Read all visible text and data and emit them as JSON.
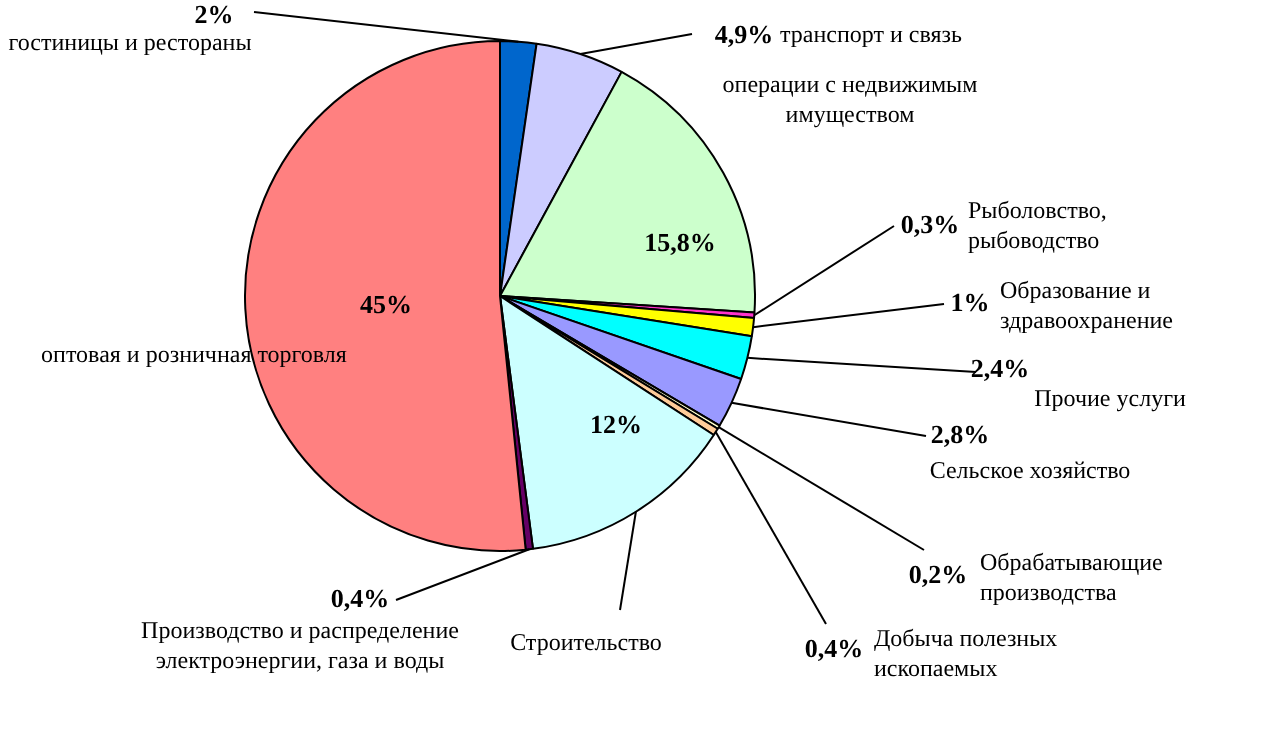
{
  "chart_data": {
    "type": "pie",
    "categories": [
      "гостиницы и рестораны",
      "транспорт и связь",
      "операции с недвижимым имуществом",
      "Рыболовство, рыбоводство",
      "Образование и здравоохранение",
      "Прочие услуги",
      "Сельское хозяйство",
      "Обрабатывающие производства",
      "Добыча полезных ископаемых",
      "Строительство",
      "Производство и распределение электроэнергии, газа и воды",
      "оптовая и розничная торговля"
    ],
    "values": [
      2,
      4.9,
      15.8,
      0.3,
      1,
      2.4,
      2.8,
      0.2,
      0.4,
      12,
      0.4,
      45
    ],
    "colors": [
      "#0066cc",
      "#ccccff",
      "#ccffcc",
      "#ff33cc",
      "#ffff00",
      "#00ffff",
      "#9999ff",
      "#ffffcc",
      "#ffcc99",
      "#ccffff",
      "#660066",
      "#ff8080"
    ],
    "value_labels": [
      "2%",
      "4,9%",
      "15,8%",
      "0,3%",
      "1%",
      "2,4%",
      "2,8%",
      "0,2%",
      "0,4%",
      "12%",
      "0,4%",
      "45%"
    ]
  }
}
